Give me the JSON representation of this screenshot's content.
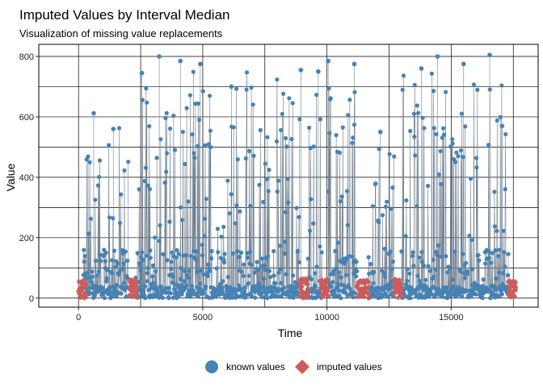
{
  "chart_data": {
    "type": "scatter",
    "title": "Imputed Values by Interval Median",
    "subtitle": "Visualization of missing value replacements",
    "xlabel": "Time",
    "ylabel": "Value",
    "xlim": [
      -1600,
      18500
    ],
    "ylim": [
      -30,
      840
    ],
    "x_ticks": [
      0,
      5000,
      10000,
      15000
    ],
    "x_tick_labels": [
      "0",
      "5000",
      "10000",
      "15000"
    ],
    "y_ticks": [
      0,
      200,
      400,
      600,
      800
    ],
    "y_tick_labels": [
      "0",
      "200",
      "400",
      "600",
      "800"
    ],
    "grid": true,
    "legend_position": "bottom",
    "series": [
      {
        "name": "known values",
        "marker": "circle",
        "color": "#4682b4",
        "line_color": "#708090",
        "segments": [
          {
            "x_start": 200,
            "x_end": 2000,
            "peak": 610
          },
          {
            "x_start": 2300,
            "x_end": 7600,
            "peak": 800
          },
          {
            "x_start": 7600,
            "x_end": 8900,
            "peak": 780
          },
          {
            "x_start": 9200,
            "x_end": 9800,
            "peak": 750
          },
          {
            "x_start": 10050,
            "x_end": 11200,
            "peak": 780
          },
          {
            "x_start": 11650,
            "x_end": 12700,
            "peak": 550
          },
          {
            "x_start": 13000,
            "x_end": 17300,
            "peak": 800
          }
        ],
        "sample_points": [
          {
            "x": 610,
            "y": 612
          },
          {
            "x": 1400,
            "y": 560
          },
          {
            "x": 2550,
            "y": 745
          },
          {
            "x": 3250,
            "y": 800
          },
          {
            "x": 4100,
            "y": 785
          },
          {
            "x": 4900,
            "y": 775
          },
          {
            "x": 6150,
            "y": 700
          },
          {
            "x": 8950,
            "y": 755
          },
          {
            "x": 9650,
            "y": 750
          },
          {
            "x": 10050,
            "y": 785
          },
          {
            "x": 11100,
            "y": 775
          },
          {
            "x": 12150,
            "y": 550
          },
          {
            "x": 13800,
            "y": 760
          },
          {
            "x": 14450,
            "y": 800
          },
          {
            "x": 15500,
            "y": 775
          },
          {
            "x": 16550,
            "y": 805
          },
          {
            "x": 17050,
            "y": 570
          }
        ]
      },
      {
        "name": "imputed values",
        "marker": "diamond",
        "color": "#cd5c5c",
        "intervals": [
          {
            "x_start": 0,
            "x_end": 300,
            "peak": 60
          },
          {
            "x_start": 2050,
            "x_end": 2350,
            "peak": 62
          },
          {
            "x_start": 8900,
            "x_end": 9250,
            "peak": 65
          },
          {
            "x_start": 9750,
            "x_end": 10050,
            "peak": 62
          },
          {
            "x_start": 11200,
            "x_end": 11700,
            "peak": 60
          },
          {
            "x_start": 12700,
            "x_end": 13000,
            "peak": 62
          },
          {
            "x_start": 17300,
            "x_end": 17600,
            "peak": 60
          }
        ]
      }
    ]
  }
}
